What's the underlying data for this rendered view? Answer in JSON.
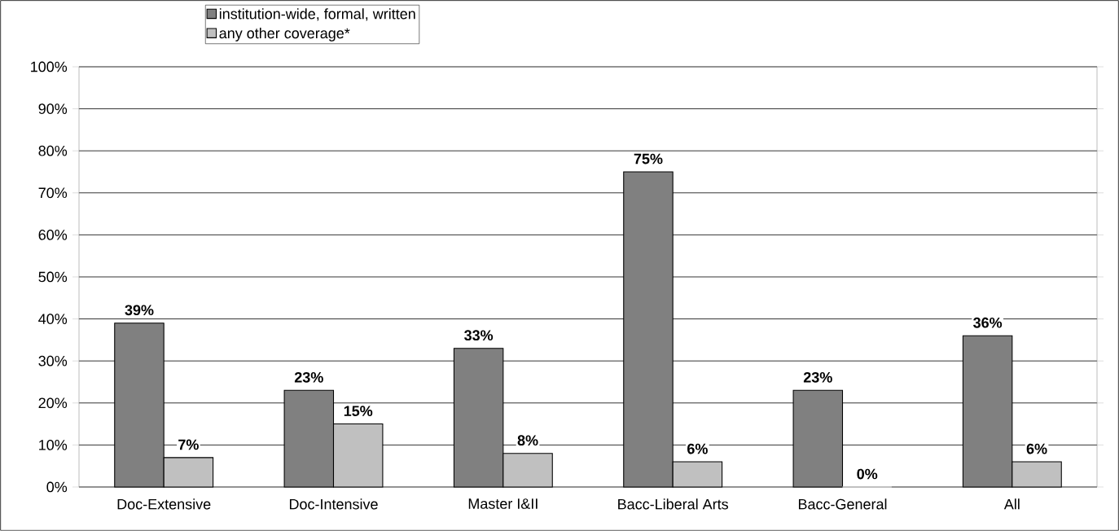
{
  "chart_data": {
    "type": "bar",
    "categories": [
      "Doc-Extensive",
      "Doc-Intensive",
      "Master I&II",
      "Bacc-Liberal Arts",
      "Bacc-General",
      "All"
    ],
    "series": [
      {
        "name": "institution-wide, formal, written",
        "color": "#808080",
        "values": [
          39,
          23,
          33,
          75,
          23,
          36
        ],
        "value_labels": [
          "39%",
          "23%",
          "33%",
          "75%",
          "23%",
          "36%"
        ]
      },
      {
        "name": "any other coverage*",
        "color": "#c0c0c0",
        "values": [
          7,
          15,
          8,
          6,
          0,
          6
        ],
        "value_labels": [
          "7%",
          "15%",
          "8%",
          "6%",
          "0%",
          "6%"
        ]
      }
    ],
    "ylim": [
      0,
      100
    ],
    "yticks": [
      {
        "value": 0,
        "label": "0%"
      },
      {
        "value": 10,
        "label": "10%"
      },
      {
        "value": 20,
        "label": "20%"
      },
      {
        "value": 30,
        "label": "30%"
      },
      {
        "value": 40,
        "label": "40%"
      },
      {
        "value": 50,
        "label": "50%"
      },
      {
        "value": 60,
        "label": "60%"
      },
      {
        "value": 70,
        "label": "70%"
      },
      {
        "value": 80,
        "label": "80%"
      },
      {
        "value": 90,
        "label": "90%"
      },
      {
        "value": 100,
        "label": "100%"
      }
    ],
    "grid": "y",
    "legend": "top"
  }
}
